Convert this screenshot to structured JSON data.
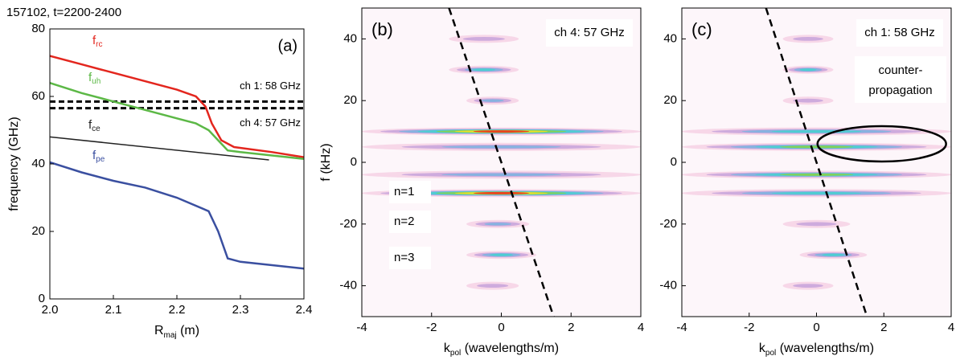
{
  "chart_data": [
    {
      "type": "line",
      "title": "157102, t=2200-2400",
      "panel_label": "(a)",
      "ylabel": "frequency (GHz)",
      "xlabel": {
        "main": "R",
        "sub": "maj",
        "rest": " (m)"
      },
      "xlim": [
        2.0,
        2.4
      ],
      "ylim": [
        0,
        80
      ],
      "xticks": [
        {
          "value": 2,
          "label": "2.0"
        },
        2.1,
        2.2,
        2.3,
        2.4
      ],
      "yticks": [
        0,
        20,
        40,
        60,
        80
      ],
      "series": [
        {
          "name": "f",
          "subscript": "rc",
          "color": "#e3261e",
          "x": [
            2.0,
            2.05,
            2.1,
            2.15,
            2.2,
            2.23,
            2.245,
            2.255,
            2.27,
            2.29,
            2.35,
            2.4
          ],
          "values": [
            72,
            69.5,
            67,
            64.5,
            62,
            60,
            57,
            52,
            47,
            45,
            43.5,
            42
          ]
        },
        {
          "name": "f",
          "subscript": "uh",
          "color": "#5cb846",
          "x": [
            2.0,
            2.05,
            2.1,
            2.15,
            2.2,
            2.23,
            2.25,
            2.265,
            2.28,
            2.3,
            2.4
          ],
          "values": [
            64,
            61,
            58.5,
            56,
            53.5,
            52,
            50,
            47,
            44,
            43.5,
            41.5
          ]
        },
        {
          "name": "f",
          "subscript": "ce",
          "color": "#222222",
          "x": [
            2.0,
            2.345
          ],
          "values": [
            48,
            41.2
          ]
        },
        {
          "name": "f",
          "subscript": "pe",
          "color": "#3a4fa0",
          "x": [
            2.0,
            2.05,
            2.1,
            2.15,
            2.2,
            2.25,
            2.265,
            2.28,
            2.3,
            2.35,
            2.4
          ],
          "values": [
            40.5,
            37.5,
            35,
            33,
            30,
            26,
            20,
            12,
            11,
            10,
            9
          ]
        }
      ],
      "channels": [
        {
          "label": "ch 1: 58 GHz",
          "value": 58
        },
        {
          "label": "ch 4: 57 GHz",
          "value": 57
        }
      ]
    },
    {
      "type": "spectrum",
      "panel_label": "(b)",
      "channel": "ch 4: 57 GHz",
      "ylabel": "f (kHz)",
      "xlabel": {
        "main": "k",
        "sub": "pol",
        "rest": " (wavelengths/m)"
      },
      "xlim": [
        -4,
        4
      ],
      "ylim": [
        -50,
        50
      ],
      "xticks": [
        -4,
        -2,
        0,
        2,
        4
      ],
      "yticks": [
        -40,
        -20,
        0,
        20,
        40
      ],
      "annotations": [
        "n=1",
        "n=2",
        "n=3"
      ],
      "dashed_line": {
        "x": [
          -1.5,
          1.5
        ],
        "y": [
          50,
          -50
        ]
      },
      "bands": [
        {
          "f": 40,
          "k": [
            -1.5,
            0.5
          ],
          "level": 1
        },
        {
          "f": 30,
          "k": [
            -1.5,
            0.5
          ],
          "level": 3
        },
        {
          "f": 20,
          "k": [
            -1,
            0.5
          ],
          "level": 2
        },
        {
          "f": 10,
          "k": [
            -4,
            4
          ],
          "level": 6
        },
        {
          "f": 5,
          "k": [
            -4,
            4
          ],
          "level": 2
        },
        {
          "f": -4,
          "k": [
            -4,
            4
          ],
          "level": 2
        },
        {
          "f": -10,
          "k": [
            -4,
            4
          ],
          "level": 6
        },
        {
          "f": -20,
          "k": [
            -1,
            0.8
          ],
          "level": 2
        },
        {
          "f": -30,
          "k": [
            -1,
            1
          ],
          "level": 3
        },
        {
          "f": -40,
          "k": [
            -1,
            0.5
          ],
          "level": 1
        }
      ]
    },
    {
      "type": "spectrum",
      "panel_label": "(c)",
      "channel": "ch 1: 58 GHz",
      "ylabel": "",
      "xlabel": {
        "main": "k",
        "sub": "pol",
        "rest": " (wavelengths/m)"
      },
      "xlim": [
        -4,
        4
      ],
      "ylim": [
        -50,
        50
      ],
      "xticks": [
        -4,
        -2,
        0,
        2,
        4
      ],
      "yticks": [
        -40,
        -20,
        0,
        20,
        40
      ],
      "annotations": [
        "counter-",
        "propagation"
      ],
      "dashed_line": {
        "x": [
          -1.5,
          1.5
        ],
        "y": [
          50,
          -50
        ]
      },
      "bands": [
        {
          "f": 40,
          "k": [
            -1,
            0.5
          ],
          "level": 1
        },
        {
          "f": 30,
          "k": [
            -1,
            0.5
          ],
          "level": 3
        },
        {
          "f": 20,
          "k": [
            -1,
            0.5
          ],
          "level": 1
        },
        {
          "f": 10,
          "k": [
            -4,
            4
          ],
          "level": 3
        },
        {
          "f": 5,
          "k": [
            -4,
            4
          ],
          "level": 4
        },
        {
          "f": -4,
          "k": [
            -4,
            4
          ],
          "level": 4
        },
        {
          "f": -10,
          "k": [
            -4,
            4
          ],
          "level": 3
        },
        {
          "f": -20,
          "k": [
            -1,
            1
          ],
          "level": 1
        },
        {
          "f": -30,
          "k": [
            -0.5,
            1.5
          ],
          "level": 3
        },
        {
          "f": -40,
          "k": [
            -1,
            0.5
          ],
          "level": 1
        }
      ]
    }
  ]
}
